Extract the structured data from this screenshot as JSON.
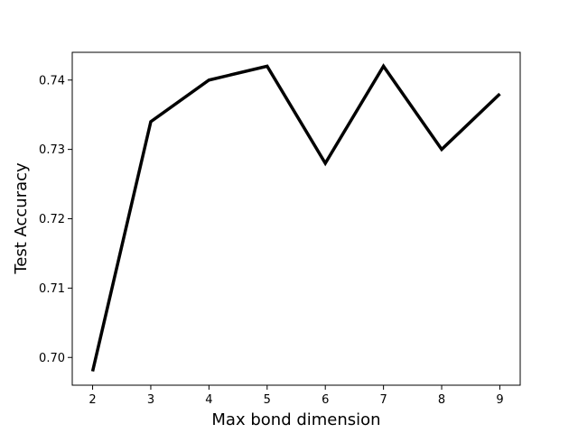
{
  "chart_data": {
    "type": "line",
    "title": "",
    "xlabel": "Max bond dimension",
    "ylabel": "Test Accuracy",
    "x": [
      2,
      3,
      4,
      5,
      6,
      7,
      8,
      9
    ],
    "series": [
      {
        "values": [
          0.698,
          0.734,
          0.74,
          0.742,
          0.728,
          0.742,
          0.73,
          0.738
        ]
      }
    ],
    "xlim": [
      1.65,
      9.35
    ],
    "ylim": [
      0.696,
      0.744
    ],
    "xticks": [
      2,
      3,
      4,
      5,
      6,
      7,
      8,
      9
    ],
    "xtick_labels": [
      "2",
      "3",
      "4",
      "5",
      "6",
      "7",
      "8",
      "9"
    ],
    "yticks": [
      0.7,
      0.71,
      0.72,
      0.73,
      0.74
    ],
    "ytick_labels": [
      "0.70",
      "0.71",
      "0.72",
      "0.73",
      "0.74"
    ],
    "line_color": "#000000",
    "grid": false,
    "legend": "none"
  }
}
